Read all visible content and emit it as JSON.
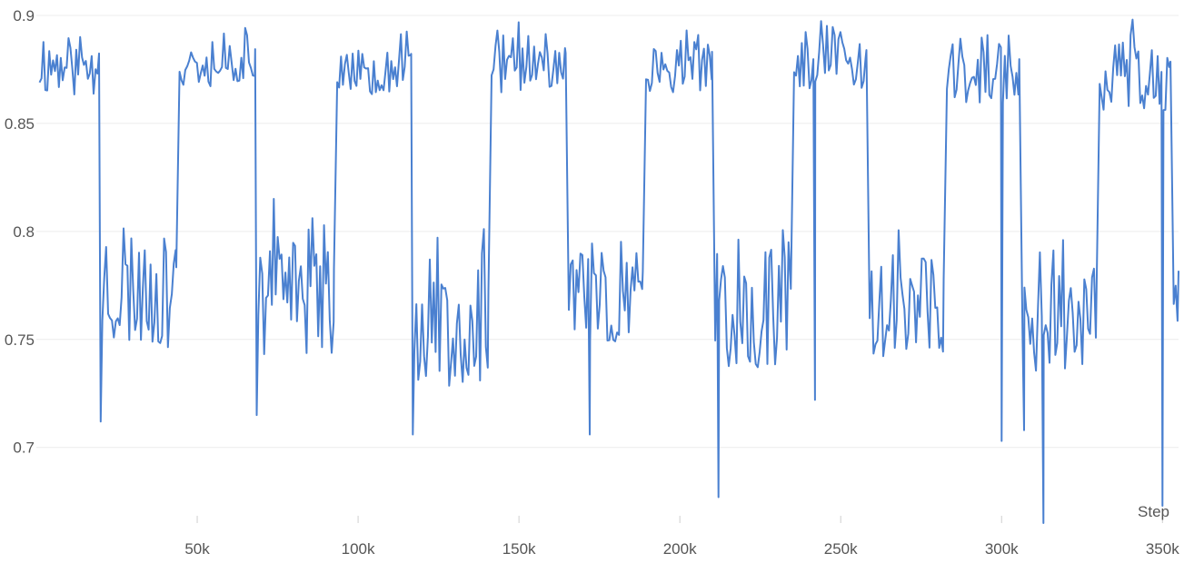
{
  "chart_data": {
    "type": "line",
    "title": "",
    "xlabel": "Step",
    "ylabel": "",
    "xlim": [
      0,
      355000
    ],
    "ylim": [
      0.665,
      0.9
    ],
    "grid": true,
    "legend": "none",
    "color": "#4a80d0",
    "x_ticks": [
      {
        "value": 50000,
        "label": "50k"
      },
      {
        "value": 100000,
        "label": "100k"
      },
      {
        "value": 150000,
        "label": "150k"
      },
      {
        "value": 200000,
        "label": "200k"
      },
      {
        "value": 250000,
        "label": "250k"
      },
      {
        "value": 300000,
        "label": "300k"
      },
      {
        "value": 350000,
        "label": "350k"
      }
    ],
    "y_ticks": [
      {
        "value": 0.7,
        "label": "0.7"
      },
      {
        "value": 0.75,
        "label": "0.75"
      },
      {
        "value": 0.8,
        "label": "0.8"
      },
      {
        "value": 0.85,
        "label": "0.85"
      },
      {
        "value": 0.9,
        "label": "0.9"
      }
    ],
    "series": [
      {
        "segments": [
          {
            "x0": 1000,
            "x1": 19500,
            "lo": 0.856,
            "hi": 0.9,
            "seed": 11
          },
          {
            "x0": 20500,
            "x1": 43500,
            "lo": 0.733,
            "hi": 0.817,
            "seed": 23
          },
          {
            "x0": 44500,
            "x1": 68000,
            "lo": 0.861,
            "hi": 0.9,
            "seed": 37
          },
          {
            "x0": 69000,
            "x1": 92500,
            "lo": 0.729,
            "hi": 0.818,
            "seed": 41
          },
          {
            "x0": 93500,
            "x1": 116500,
            "lo": 0.857,
            "hi": 0.899,
            "seed": 53
          },
          {
            "x0": 117500,
            "x1": 140500,
            "lo": 0.714,
            "hi": 0.811,
            "seed": 67
          },
          {
            "x0": 141500,
            "x1": 164500,
            "lo": 0.858,
            "hi": 0.899,
            "seed": 71
          },
          {
            "x0": 165500,
            "x1": 188500,
            "lo": 0.737,
            "hi": 0.811,
            "seed": 83
          },
          {
            "x0": 189500,
            "x1": 210000,
            "lo": 0.858,
            "hi": 0.9,
            "seed": 97
          },
          {
            "x0": 211000,
            "x1": 234500,
            "lo": 0.72,
            "hi": 0.809,
            "seed": 101
          },
          {
            "x0": 235500,
            "x1": 258000,
            "lo": 0.86,
            "hi": 0.9,
            "seed": 113
          },
          {
            "x0": 259000,
            "x1": 282000,
            "lo": 0.73,
            "hi": 0.81,
            "seed": 127
          },
          {
            "x0": 283000,
            "x1": 305500,
            "lo": 0.851,
            "hi": 0.899,
            "seed": 131
          },
          {
            "x0": 306500,
            "x1": 329500,
            "lo": 0.721,
            "hi": 0.805,
            "seed": 149
          },
          {
            "x0": 330500,
            "x1": 352500,
            "lo": 0.848,
            "hi": 0.899,
            "seed": 151
          },
          {
            "x0": 353500,
            "x1": 355000,
            "lo": 0.75,
            "hi": 0.803,
            "seed": 163
          }
        ],
        "spikes": [
          {
            "x": 20000,
            "y": 0.712
          },
          {
            "x": 68500,
            "y": 0.715
          },
          {
            "x": 117000,
            "y": 0.706
          },
          {
            "x": 172000,
            "y": 0.706
          },
          {
            "x": 212000,
            "y": 0.677
          },
          {
            "x": 242000,
            "y": 0.722
          },
          {
            "x": 300000,
            "y": 0.703
          },
          {
            "x": 307000,
            "y": 0.708
          },
          {
            "x": 313000,
            "y": 0.665
          },
          {
            "x": 350000,
            "y": 0.673
          }
        ]
      }
    ]
  }
}
